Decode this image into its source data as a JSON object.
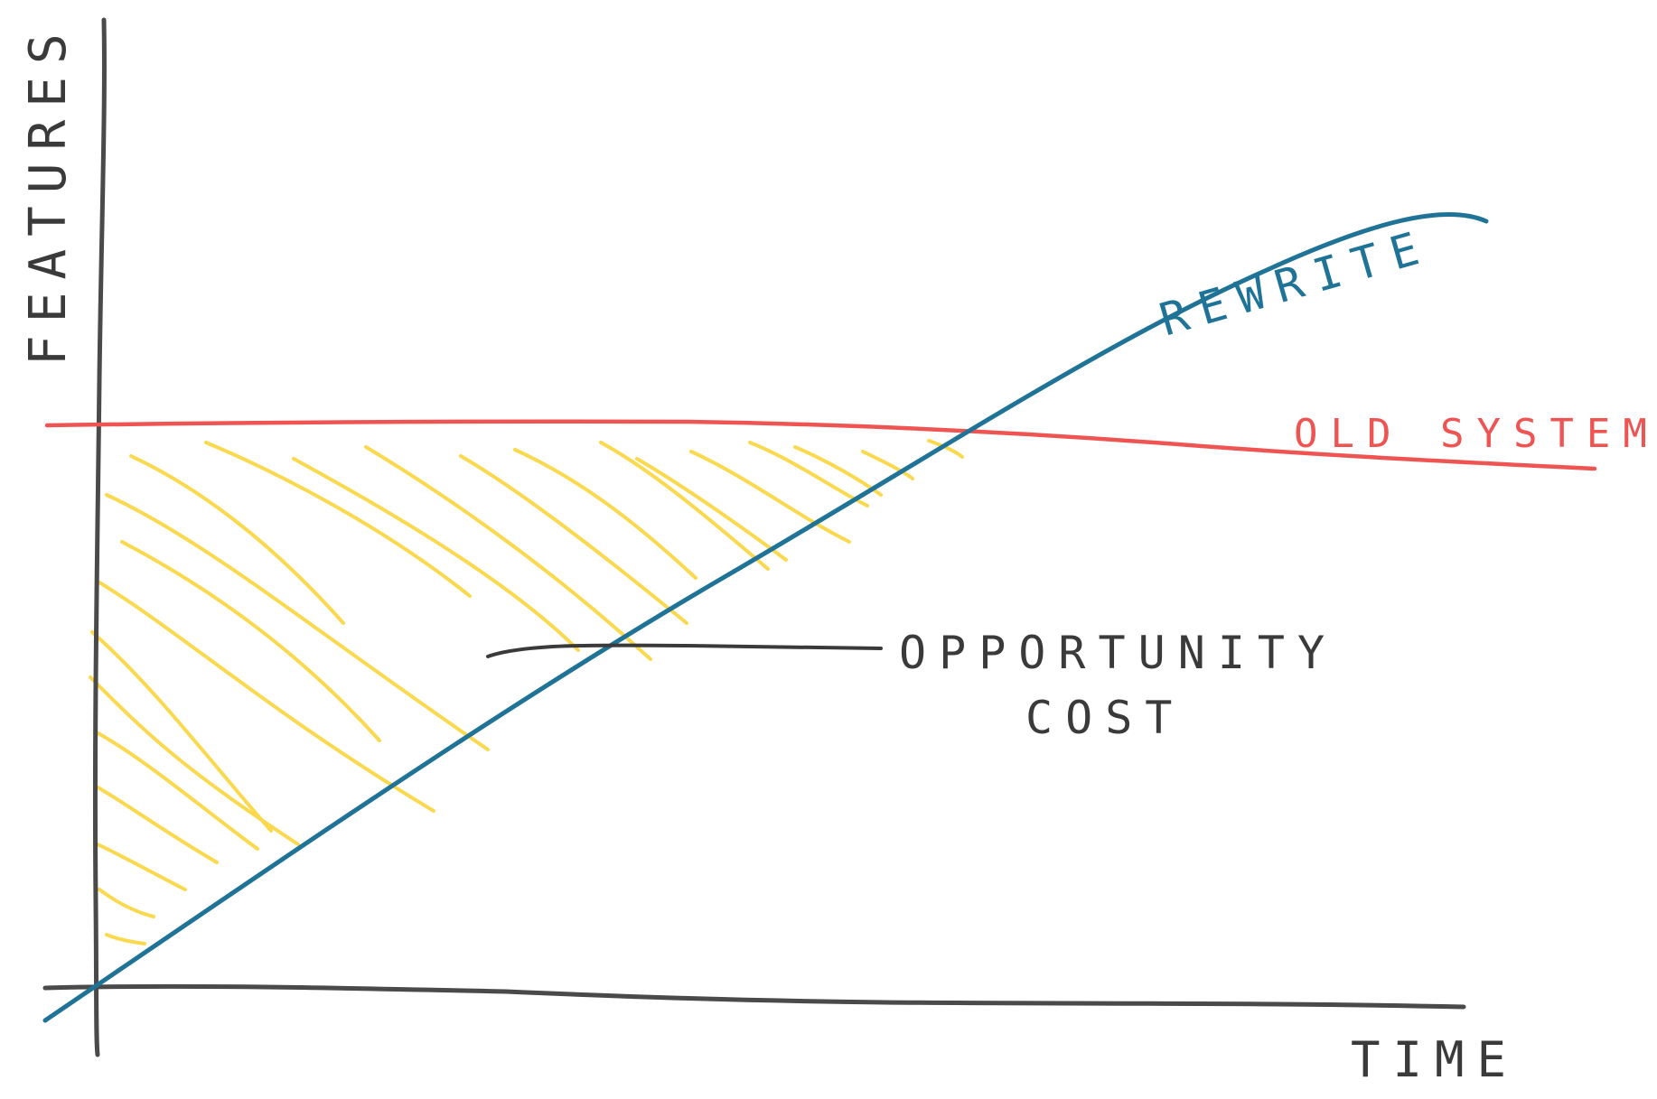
{
  "labels": {
    "y_axis": "FEATURES",
    "x_axis": "TIME",
    "rewrite": "REWRITE",
    "old_system": "OLD SYSTEM",
    "opportunity_line1": "OPPORTUNITY",
    "opportunity_line2": "COST"
  },
  "colors": {
    "axis": "#4a4a4a",
    "old_system": "#ee5452",
    "rewrite": "#1f7396",
    "hatch": "#fad94f",
    "text": "#3a3a3a"
  }
}
